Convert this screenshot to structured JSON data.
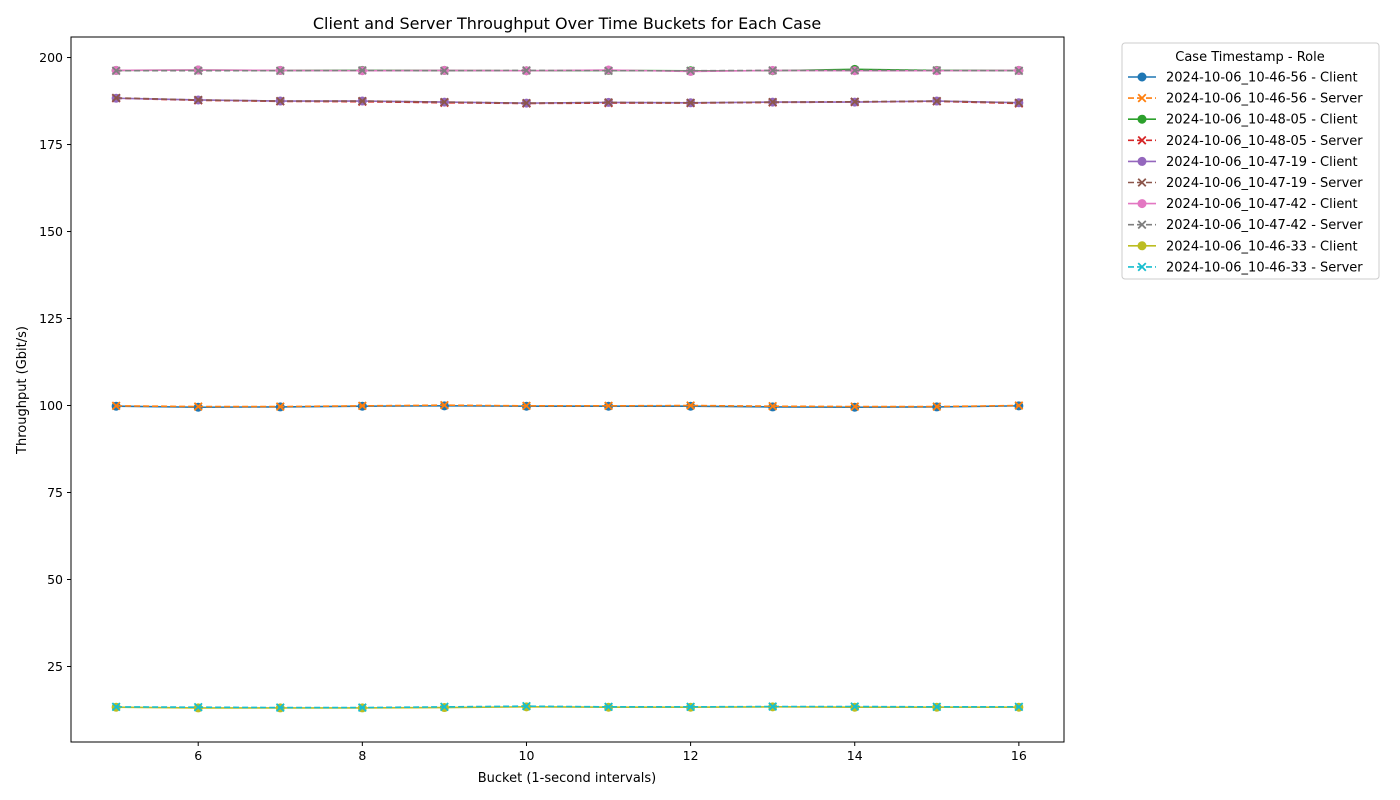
{
  "chart_data": {
    "type": "line",
    "title": "Client and Server Throughput Over Time Buckets for Each Case",
    "xlabel": "Bucket (1-second intervals)",
    "ylabel": "Throughput (Gbit/s)",
    "xlim": [
      4.45,
      16.55
    ],
    "ylim": [
      3.3,
      205.9
    ],
    "x_ticks": [
      6,
      8,
      10,
      12,
      14,
      16
    ],
    "y_ticks": [
      25,
      50,
      75,
      100,
      125,
      150,
      175,
      200
    ],
    "x": [
      5,
      6,
      7,
      8,
      9,
      10,
      11,
      12,
      13,
      14,
      15,
      16
    ],
    "grid": false,
    "legend": {
      "title": "Case Timestamp - Role",
      "placement": "outside-top-right"
    },
    "series": [
      {
        "name": "2024-10-06_10-46-56 - Client",
        "color": "#1f77b4",
        "style": "solid",
        "marker": "circle",
        "values": [
          99.8,
          99.5,
          99.6,
          99.8,
          99.9,
          99.8,
          99.8,
          99.8,
          99.6,
          99.5,
          99.6,
          99.9
        ]
      },
      {
        "name": "2024-10-06_10-46-56 - Server",
        "color": "#ff7f0e",
        "style": "dashed",
        "marker": "x",
        "values": [
          99.9,
          99.7,
          99.7,
          99.9,
          100.1,
          99.9,
          99.9,
          100.0,
          99.8,
          99.7,
          99.7,
          100.0
        ]
      },
      {
        "name": "2024-10-06_10-48-05 - Client",
        "color": "#2ca02c",
        "style": "solid",
        "marker": "circle",
        "values": [
          196.3,
          196.4,
          196.3,
          196.3,
          196.3,
          196.2,
          196.3,
          196.2,
          196.2,
          196.6,
          196.3,
          196.3
        ]
      },
      {
        "name": "2024-10-06_10-48-05 - Server",
        "color": "#d62728",
        "style": "dashed",
        "marker": "x",
        "values": [
          188.3,
          187.7,
          187.4,
          187.3,
          187.0,
          186.8,
          186.9,
          186.9,
          187.1,
          187.2,
          187.4,
          186.8
        ]
      },
      {
        "name": "2024-10-06_10-47-19 - Client",
        "color": "#9467bd",
        "style": "solid",
        "marker": "circle",
        "values": [
          188.3,
          187.8,
          187.5,
          187.5,
          187.2,
          186.9,
          187.1,
          187.0,
          187.2,
          187.2,
          187.5,
          187.0
        ]
      },
      {
        "name": "2024-10-06_10-47-19 - Server",
        "color": "#8c564b",
        "style": "dashed",
        "marker": "x",
        "values": [
          188.4,
          187.8,
          187.5,
          187.5,
          187.2,
          186.9,
          187.1,
          187.0,
          187.2,
          187.3,
          187.5,
          187.0
        ]
      },
      {
        "name": "2024-10-06_10-47-42 - Client",
        "color": "#e377c2",
        "style": "solid",
        "marker": "circle",
        "values": [
          196.3,
          196.4,
          196.3,
          196.2,
          196.3,
          196.2,
          196.4,
          196.0,
          196.3,
          196.2,
          196.2,
          196.3
        ]
      },
      {
        "name": "2024-10-06_10-47-42 - Server",
        "color": "#7f7f7f",
        "style": "dashed",
        "marker": "x",
        "values": [
          196.2,
          196.2,
          196.2,
          196.3,
          196.2,
          196.3,
          196.2,
          196.2,
          196.3,
          196.3,
          196.3,
          196.2
        ]
      },
      {
        "name": "2024-10-06_10-46-33 - Client",
        "color": "#bcbd22",
        "style": "solid",
        "marker": "circle",
        "values": [
          13.3,
          13.1,
          13.1,
          13.1,
          13.2,
          13.4,
          13.3,
          13.3,
          13.4,
          13.3,
          13.3,
          13.3
        ]
      },
      {
        "name": "2024-10-06_10-46-33 - Server",
        "color": "#17becf",
        "style": "dashed",
        "marker": "x",
        "values": [
          13.4,
          13.3,
          13.2,
          13.2,
          13.4,
          13.6,
          13.4,
          13.4,
          13.5,
          13.5,
          13.4,
          13.4
        ]
      }
    ]
  }
}
